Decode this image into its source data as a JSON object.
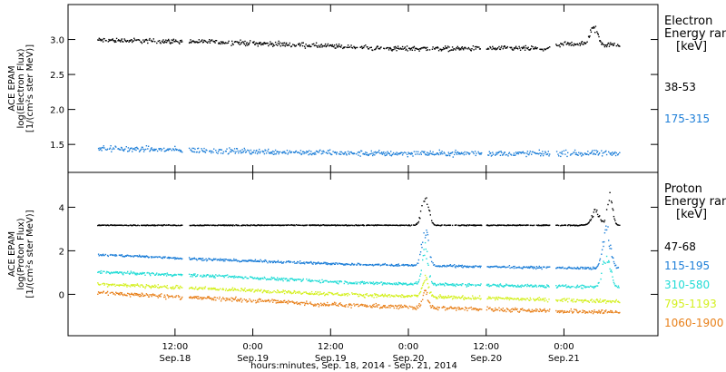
{
  "chart_data": [
    {
      "type": "scatter",
      "panel": "electron",
      "ylabel_lines": [
        "ACE EPAM",
        "log(Electron Flux)",
        "[1/(cm²s ster MeV)]"
      ],
      "ylim": [
        1.1,
        3.5
      ],
      "yticks": [
        1.5,
        2.0,
        2.5,
        3.0
      ],
      "ytick_labels": [
        "1.5",
        "2.0",
        "2.5",
        "3.0"
      ],
      "legend_title": [
        "Electron",
        "Energy ran",
        "[keV]"
      ],
      "series": [
        {
          "name": "38-53",
          "color": "#000000",
          "base": 2.95,
          "noise": 0.05,
          "trend": [
            [
              0,
              3.0
            ],
            [
              20,
              2.97
            ],
            [
              45,
              2.88
            ],
            [
              70,
              2.88
            ],
            [
              72,
              2.95
            ],
            [
              80,
              2.93
            ]
          ],
          "peaks": [
            [
              76.5,
              3.25,
              1.2
            ]
          ]
        },
        {
          "name": "175-315",
          "color": "#1e7fd8",
          "base": 1.42,
          "noise": 0.06,
          "trend": [
            [
              0,
              1.45
            ],
            [
              40,
              1.38
            ],
            [
              80,
              1.38
            ]
          ],
          "peaks": []
        }
      ]
    },
    {
      "type": "scatter",
      "panel": "proton",
      "ylabel_lines": [
        "ACE EPAM",
        "log(Proton Flux)",
        "[1/(cm²s ster MeV)]"
      ],
      "ylim": [
        -1.9,
        5.6
      ],
      "yticks": [
        0,
        2,
        4
      ],
      "ytick_labels": [
        "0",
        "2",
        "4"
      ],
      "legend_title": [
        "Proton",
        "Energy ran",
        "[keV]"
      ],
      "series": [
        {
          "name": "47-68",
          "color": "#000000",
          "base": 3.2,
          "noise": 0.03,
          "trend": [
            [
              0,
              3.2
            ],
            [
              80,
              3.2
            ]
          ],
          "peaks": [
            [
              50.5,
              5.0,
              1.0
            ],
            [
              76.8,
              4.0,
              1.2
            ],
            [
              79.0,
              4.8,
              0.8
            ]
          ]
        },
        {
          "name": "115-195",
          "color": "#1e7fd8",
          "base": 1.7,
          "noise": 0.08,
          "trend": [
            [
              0,
              1.85
            ],
            [
              20,
              1.6
            ],
            [
              40,
              1.4
            ],
            [
              80,
              1.2
            ]
          ],
          "peaks": [
            [
              50.5,
              3.5,
              1.0
            ],
            [
              78.5,
              3.3,
              1.2
            ]
          ]
        },
        {
          "name": "310-580",
          "color": "#22dcd6",
          "base": 1.0,
          "noise": 0.1,
          "trend": [
            [
              0,
              1.05
            ],
            [
              20,
              0.85
            ],
            [
              40,
              0.55
            ],
            [
              80,
              0.35
            ]
          ],
          "peaks": [
            [
              50.5,
              2.4,
              0.9
            ],
            [
              78.5,
              2.2,
              1.2
            ]
          ]
        },
        {
          "name": "795-1193",
          "color": "#d4f020",
          "base": 0.6,
          "noise": 0.12,
          "trend": [
            [
              0,
              0.5
            ],
            [
              20,
              0.25
            ],
            [
              40,
              0.0
            ],
            [
              80,
              -0.3
            ]
          ],
          "peaks": [
            [
              50.5,
              1.0,
              0.9
            ]
          ]
        },
        {
          "name": "1060-1900",
          "color": "#e8801a",
          "base": 0.1,
          "noise": 0.15,
          "trend": [
            [
              0,
              0.1
            ],
            [
              20,
              -0.2
            ],
            [
              40,
              -0.5
            ],
            [
              80,
              -0.8
            ]
          ],
          "peaks": [
            [
              50.5,
              0.3,
              0.9
            ]
          ]
        }
      ]
    }
  ],
  "x_axis": {
    "xlabel": "hours:minutes, Sep. 18, 2014 - Sep. 21, 2014",
    "range_hours": [
      -4.5,
      86.5
    ],
    "data_span_hours": [
      0,
      80.5
    ],
    "gaps_hours": [
      [
        13.0,
        14.0
      ],
      [
        59.3,
        60.0
      ],
      [
        69.8,
        70.7
      ]
    ],
    "ticks": [
      {
        "hour": 12,
        "time": "12:00",
        "date": "Sep.18"
      },
      {
        "hour": 24,
        "time": "0:00",
        "date": "Sep.19"
      },
      {
        "hour": 36,
        "time": "12:00",
        "date": "Sep.19"
      },
      {
        "hour": 48,
        "time": "0:00",
        "date": "Sep.20"
      },
      {
        "hour": 60,
        "time": "12:00",
        "date": "Sep.20"
      },
      {
        "hour": 72,
        "time": "0:00",
        "date": "Sep.21"
      }
    ]
  }
}
